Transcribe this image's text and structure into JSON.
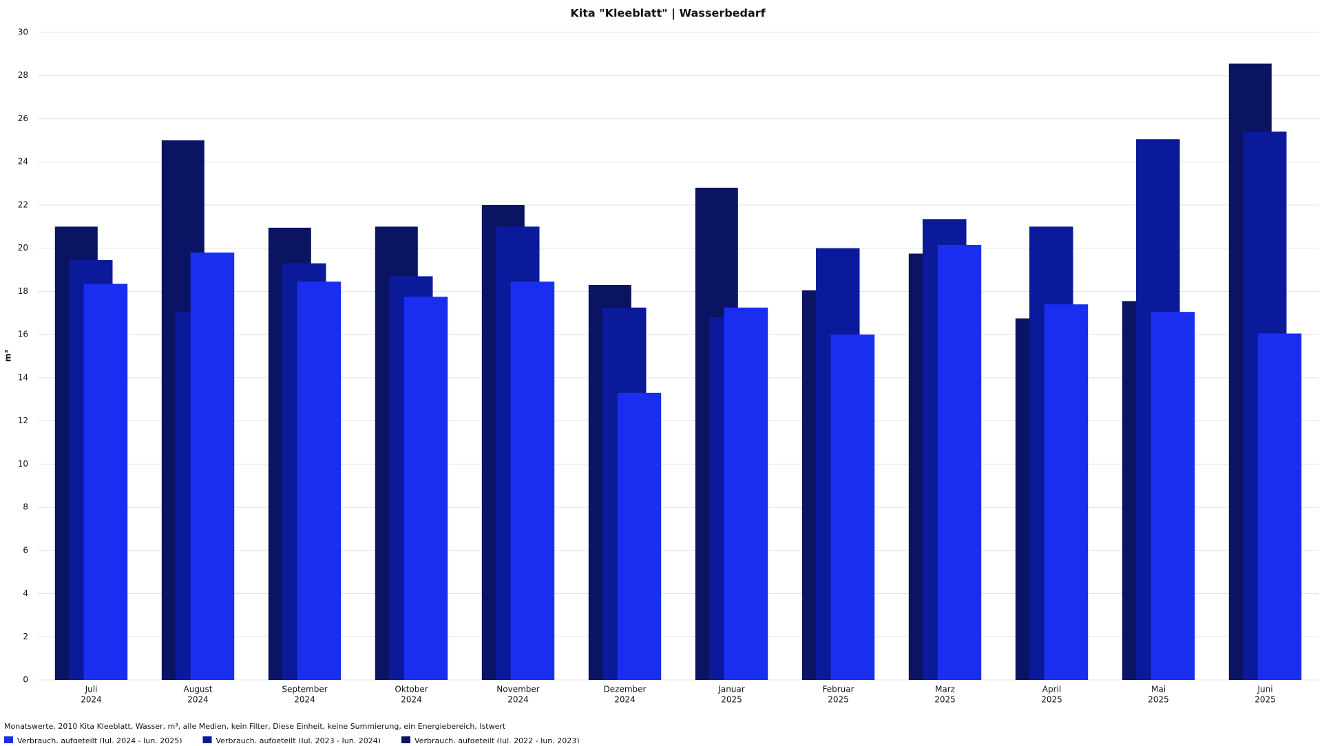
{
  "chart_data": {
    "type": "bar",
    "title": "Kita \"Kleeblatt\" | Wasserbedarf",
    "y_label": "m³",
    "note": "Monatswerte, 2010 Kita Kleeblatt, Wasser, m³, alle Medien, kein Filter, Diese Einheit, keine Summierung, ein Energiebereich, Istwert",
    "categories": [
      [
        "Juli",
        "2024"
      ],
      [
        "August",
        "2024"
      ],
      [
        "September",
        "2024"
      ],
      [
        "Oktober",
        "2024"
      ],
      [
        "November",
        "2024"
      ],
      [
        "Dezember",
        "2024"
      ],
      [
        "Januar",
        "2025"
      ],
      [
        "Februar",
        "2025"
      ],
      [
        "Marz",
        "2025"
      ],
      [
        "April",
        "2025"
      ],
      [
        "Mai",
        "2025"
      ],
      [
        "Juni",
        "2025"
      ]
    ],
    "series": [
      {
        "name": "Verbrauch, aufgeteilt (Jul. 2022 - Jun. 2023)",
        "color": "#0b1463",
        "values": [
          21.0,
          25.0,
          20.95,
          21.0,
          22.0,
          18.3,
          22.8,
          18.05,
          19.75,
          16.75,
          17.55,
          28.55
        ]
      },
      {
        "name": "Verbrauch, aufgeteilt (Jul. 2023 - Jun. 2024)",
        "color": "#0b1a9a",
        "values": [
          19.45,
          17.05,
          19.3,
          18.7,
          21.0,
          17.25,
          16.8,
          20.0,
          21.35,
          21.0,
          25.05,
          25.4
        ]
      },
      {
        "name": "Verbrauch, aufgeteilt (Jul. 2024 - Jun. 2025)",
        "color": "#1a2ef0",
        "values": [
          18.35,
          19.8,
          18.45,
          17.75,
          18.45,
          13.3,
          17.25,
          16.0,
          20.15,
          17.4,
          17.05,
          16.05
        ]
      }
    ],
    "ylim": [
      0,
      30
    ],
    "yticks": [
      0,
      2,
      4,
      6,
      8,
      10,
      12,
      14,
      16,
      18,
      20,
      22,
      24,
      26,
      28,
      30
    ],
    "grid": true
  }
}
